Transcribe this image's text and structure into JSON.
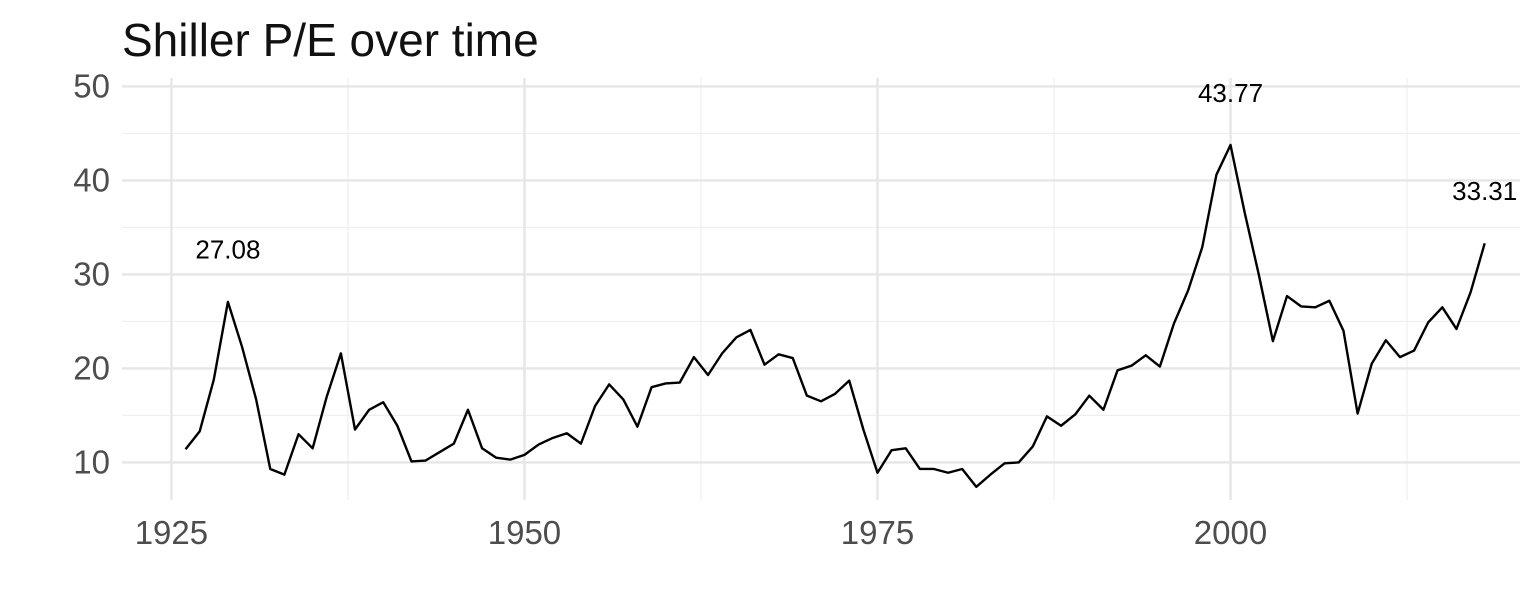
{
  "chart_data": {
    "type": "line",
    "title": "Shiller P/E over time",
    "xlabel": "",
    "ylabel": "",
    "xlim": [
      1921.5,
      2020.5
    ],
    "ylim": [
      6.0,
      50.9
    ],
    "x_ticks": [
      1925,
      1950,
      1975,
      2000
    ],
    "x_tick_labels": [
      "1925",
      "1950",
      "1975",
      "2000"
    ],
    "y_ticks": [
      10,
      20,
      30,
      40,
      50
    ],
    "y_tick_labels": [
      "10",
      "20",
      "30",
      "40",
      "50"
    ],
    "grid": true,
    "legend": "none",
    "line_color": "#000000",
    "series": [
      {
        "x": [
          1926,
          1927,
          1928,
          1929,
          1930,
          1931,
          1932,
          1933,
          1934,
          1935,
          1936,
          1937,
          1938,
          1939,
          1940,
          1941,
          1942,
          1943,
          1944,
          1945,
          1946,
          1947,
          1948,
          1949,
          1950,
          1951,
          1952,
          1953,
          1954,
          1955,
          1956,
          1957,
          1958,
          1959,
          1960,
          1961,
          1962,
          1963,
          1964,
          1965,
          1966,
          1967,
          1968,
          1969,
          1970,
          1971,
          1972,
          1973,
          1974,
          1975,
          1976,
          1977,
          1978,
          1979,
          1980,
          1981,
          1982,
          1983,
          1984,
          1985,
          1986,
          1987,
          1988,
          1989,
          1990,
          1991,
          1992,
          1993,
          1994,
          1995,
          1996,
          1997,
          1998,
          1999,
          2000,
          2001,
          2002,
          2003,
          2004,
          2005,
          2006,
          2007,
          2008,
          2009,
          2010,
          2011,
          2012,
          2013,
          2014,
          2015,
          2016,
          2017,
          2018
        ],
        "y": [
          11.4,
          13.3,
          18.8,
          27.08,
          22.3,
          16.7,
          9.3,
          8.7,
          13.0,
          11.5,
          17.0,
          21.6,
          13.5,
          15.6,
          16.4,
          13.9,
          10.1,
          10.2,
          11.1,
          12.0,
          15.6,
          11.5,
          10.5,
          10.3,
          10.8,
          11.9,
          12.6,
          13.1,
          12.0,
          16.0,
          18.3,
          16.7,
          13.8,
          18.0,
          18.4,
          18.5,
          21.2,
          19.3,
          21.6,
          23.3,
          24.1,
          20.4,
          21.5,
          21.1,
          17.1,
          16.5,
          17.3,
          18.7,
          13.5,
          8.9,
          11.3,
          11.5,
          9.3,
          9.3,
          8.9,
          9.3,
          7.4,
          8.7,
          9.9,
          10.0,
          11.7,
          14.9,
          13.9,
          15.1,
          17.1,
          15.6,
          19.8,
          20.3,
          21.4,
          20.2,
          24.8,
          28.3,
          32.9,
          40.6,
          43.77,
          36.6,
          30.0,
          22.9,
          27.7,
          26.6,
          26.5,
          27.2,
          24.0,
          15.2,
          20.5,
          23.0,
          21.2,
          21.9,
          24.9,
          26.5,
          24.2,
          28.1,
          33.31
        ]
      }
    ],
    "annotations": [
      {
        "x": 1929,
        "y": 27.08,
        "label": "27.08"
      },
      {
        "x": 2000,
        "y": 43.77,
        "label": "43.77"
      },
      {
        "x": 2018,
        "y": 33.31,
        "label": "33.31"
      }
    ]
  }
}
